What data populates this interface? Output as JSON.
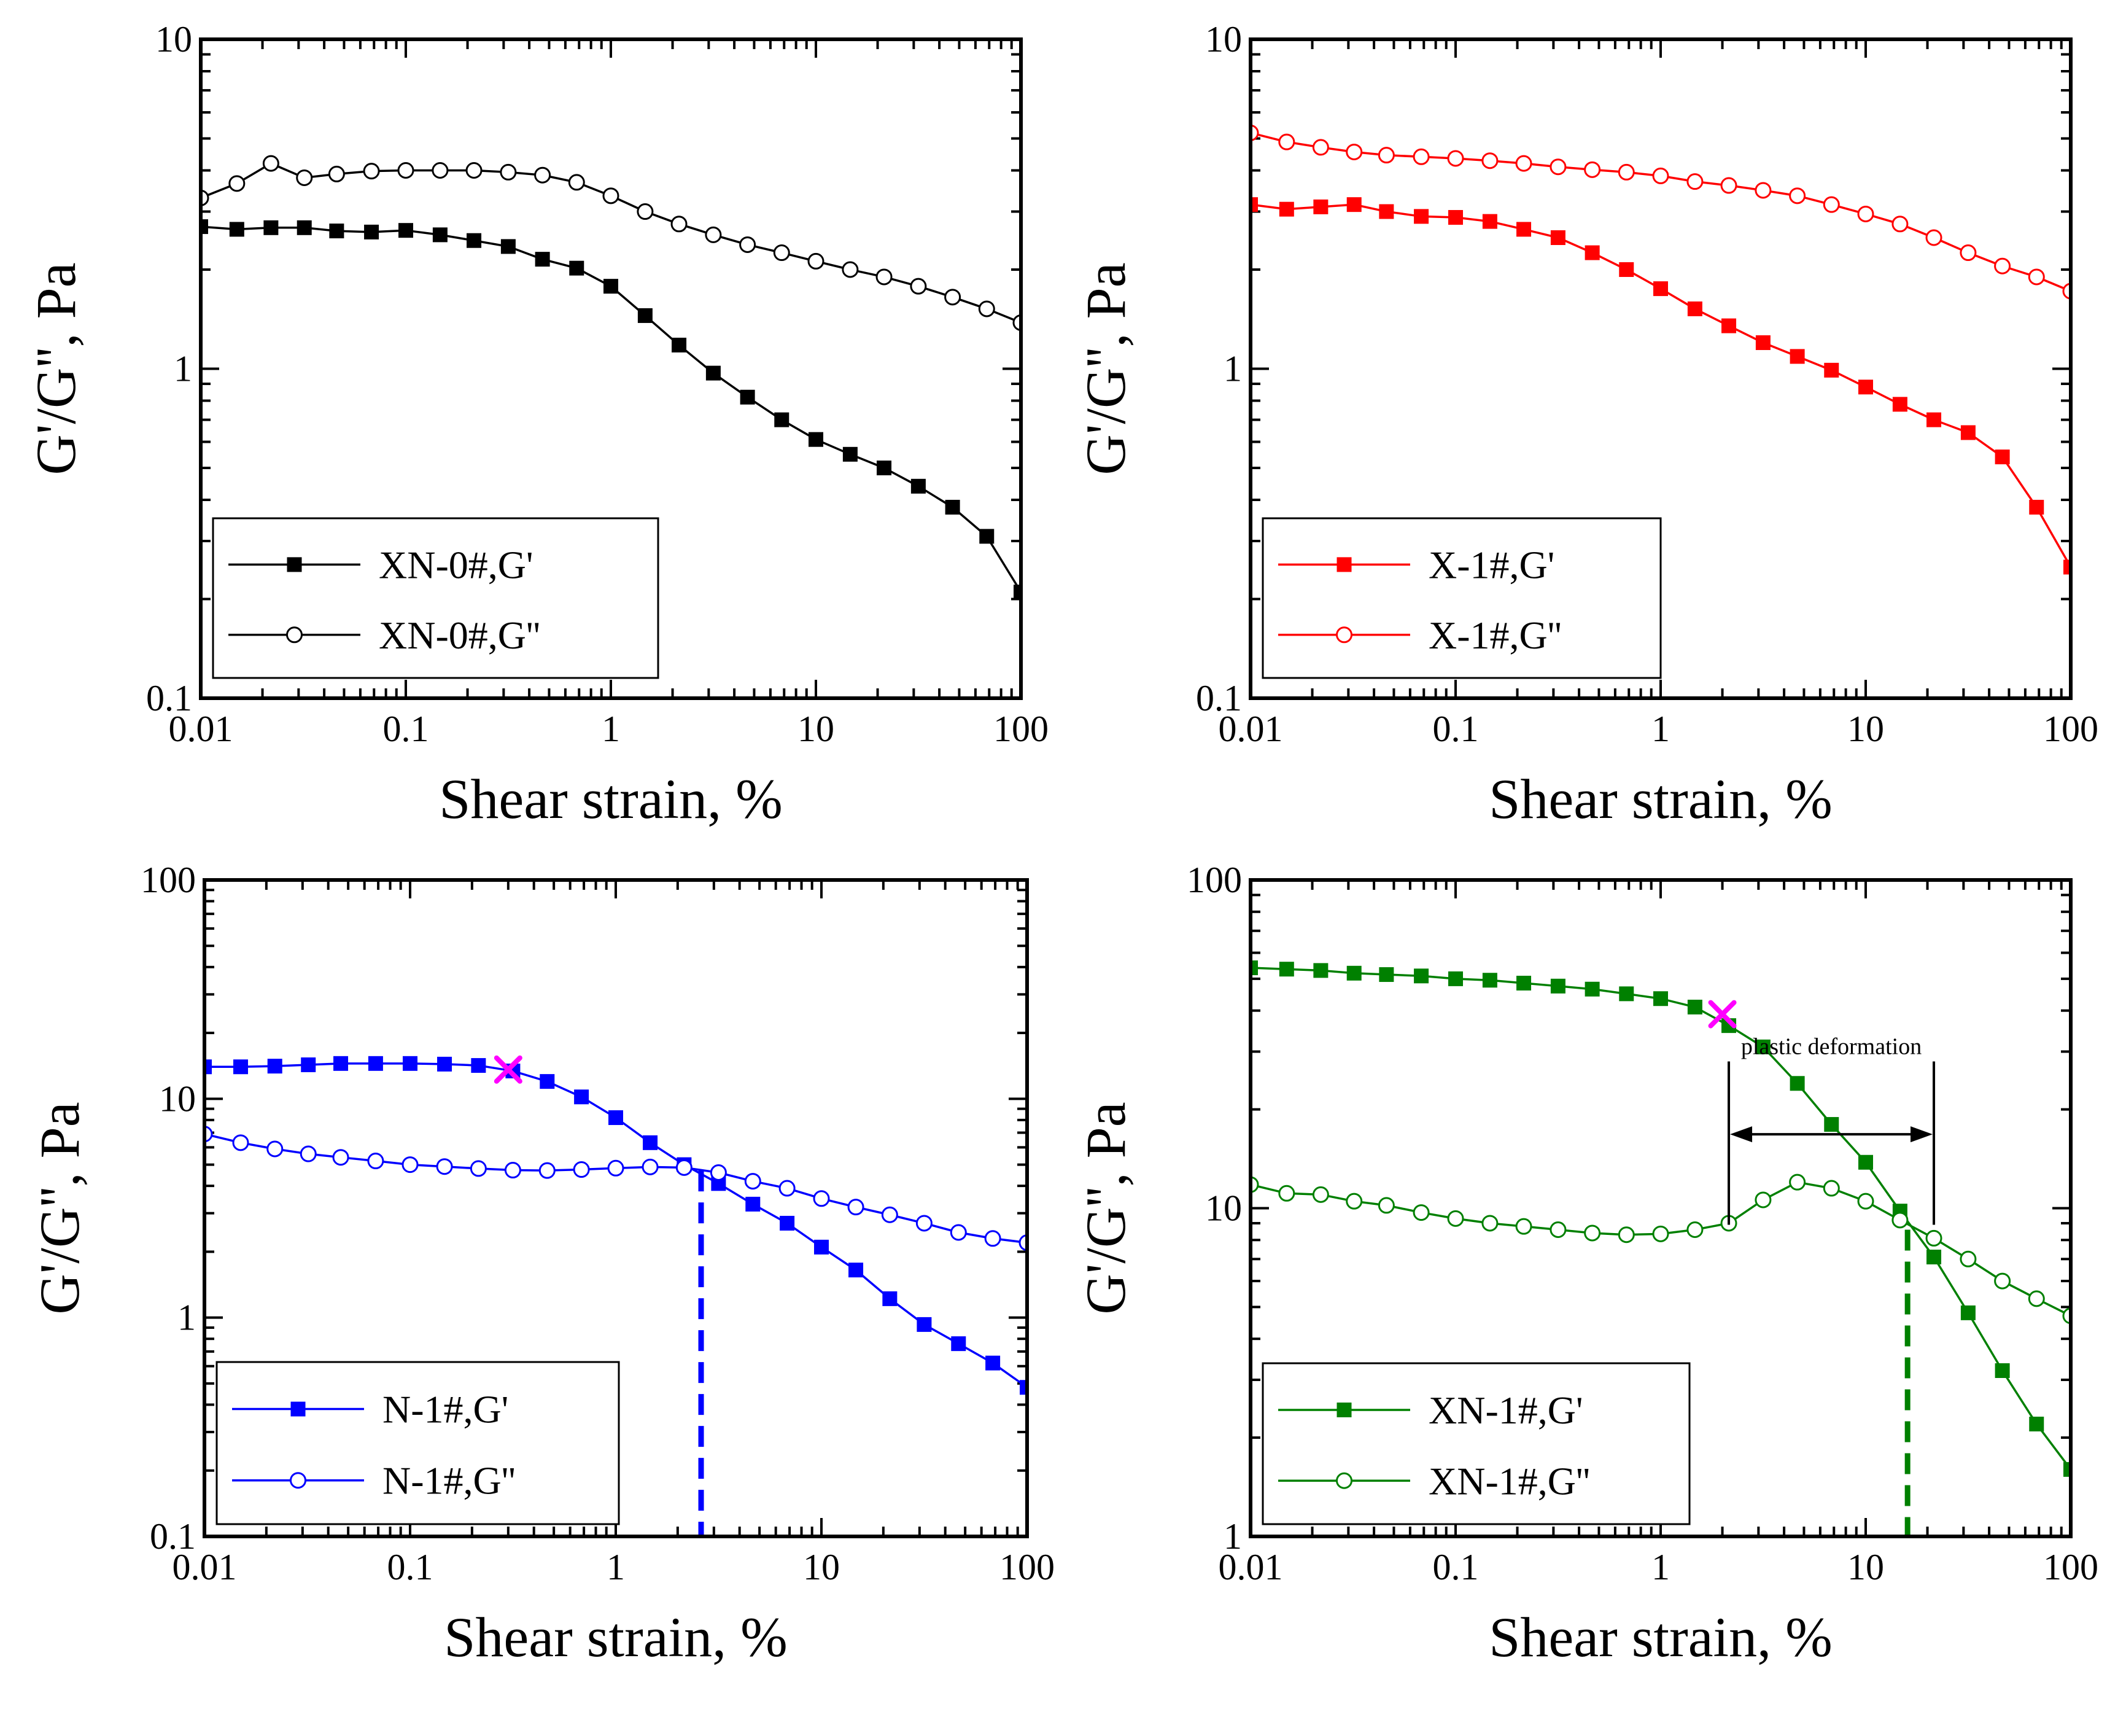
{
  "chart_data": [
    {
      "type": "line",
      "panel": "top-left",
      "xscale": "log",
      "yscale": "log",
      "xlim": [
        0.01,
        100
      ],
      "ylim": [
        0.1,
        10
      ],
      "xticks": [
        "0.01",
        "0.1",
        "1",
        "10",
        "100"
      ],
      "yticks": [
        "0.1",
        "1",
        "10"
      ],
      "xlabel": "Shear strain, %",
      "ylabel": "G'/G'', Pa",
      "legend_position": "bottom-left",
      "x": [
        0.01,
        0.015,
        0.022,
        0.032,
        0.046,
        0.068,
        0.1,
        0.147,
        0.215,
        0.316,
        0.464,
        0.681,
        1.0,
        1.47,
        2.15,
        3.16,
        4.64,
        6.81,
        10.0,
        14.7,
        21.5,
        31.6,
        46.4,
        68.1,
        100
      ],
      "series": [
        {
          "name": "XN-0#,G'",
          "color": "#000000",
          "marker": "square-filled",
          "values": [
            2.7,
            2.65,
            2.68,
            2.68,
            2.62,
            2.6,
            2.63,
            2.55,
            2.45,
            2.35,
            2.15,
            2.02,
            1.78,
            1.45,
            1.18,
            0.97,
            0.82,
            0.7,
            0.61,
            0.55,
            0.5,
            0.44,
            0.38,
            0.31,
            0.21
          ]
        },
        {
          "name": "XN-0#,G''",
          "color": "#000000",
          "marker": "circle-open",
          "values": [
            3.3,
            3.65,
            4.2,
            3.8,
            3.9,
            3.98,
            4.0,
            4.0,
            4.0,
            3.95,
            3.87,
            3.68,
            3.35,
            3.0,
            2.75,
            2.55,
            2.38,
            2.25,
            2.12,
            2.0,
            1.9,
            1.78,
            1.65,
            1.52,
            1.38
          ]
        }
      ]
    },
    {
      "type": "line",
      "panel": "top-right",
      "xscale": "log",
      "yscale": "log",
      "xlim": [
        0.01,
        100
      ],
      "ylim": [
        0.1,
        10
      ],
      "xticks": [
        "0.01",
        "0.1",
        "1",
        "10",
        "100"
      ],
      "yticks": [
        "0.1",
        "1",
        "10"
      ],
      "xlabel": "Shear strain, %",
      "ylabel": "G'/G'', Pa",
      "legend_position": "bottom-left",
      "x": [
        0.01,
        0.015,
        0.022,
        0.032,
        0.046,
        0.068,
        0.1,
        0.147,
        0.215,
        0.316,
        0.464,
        0.681,
        1.0,
        1.47,
        2.15,
        3.16,
        4.64,
        6.81,
        10.0,
        14.7,
        21.5,
        31.6,
        46.4,
        68.1,
        100
      ],
      "series": [
        {
          "name": "X-1#,G'",
          "color": "#ff0000",
          "marker": "square-filled",
          "values": [
            3.15,
            3.05,
            3.1,
            3.15,
            3.0,
            2.9,
            2.88,
            2.8,
            2.65,
            2.5,
            2.25,
            2.0,
            1.75,
            1.52,
            1.35,
            1.2,
            1.09,
            0.99,
            0.88,
            0.78,
            0.7,
            0.64,
            0.54,
            0.38,
            0.25
          ]
        },
        {
          "name": "X-1#,G''",
          "color": "#ff0000",
          "marker": "circle-open",
          "values": [
            5.2,
            4.88,
            4.7,
            4.55,
            4.45,
            4.4,
            4.35,
            4.28,
            4.2,
            4.1,
            4.02,
            3.95,
            3.85,
            3.7,
            3.6,
            3.48,
            3.35,
            3.15,
            2.95,
            2.75,
            2.5,
            2.25,
            2.05,
            1.9,
            1.72
          ]
        }
      ]
    },
    {
      "type": "line",
      "panel": "bottom-left",
      "xscale": "log",
      "yscale": "log",
      "xlim": [
        0.01,
        100
      ],
      "ylim": [
        0.1,
        100
      ],
      "xticks": [
        "0.01",
        "0.1",
        "1",
        "10",
        "100"
      ],
      "yticks": [
        "0.1",
        "1",
        "10",
        "100"
      ],
      "xlabel": "Shear strain, %",
      "ylabel": "G'/G'', Pa",
      "legend_position": "bottom-left",
      "x": [
        0.01,
        0.015,
        0.022,
        0.032,
        0.046,
        0.068,
        0.1,
        0.147,
        0.215,
        0.316,
        0.464,
        0.681,
        1.0,
        1.47,
        2.15,
        3.16,
        4.64,
        6.81,
        10.0,
        14.7,
        21.5,
        31.6,
        46.4,
        68.1,
        100
      ],
      "series": [
        {
          "name": "N-1#,G'",
          "color": "#0000ff",
          "marker": "square-filled",
          "values": [
            14.0,
            14.0,
            14.1,
            14.3,
            14.5,
            14.5,
            14.5,
            14.4,
            14.2,
            13.4,
            12.0,
            10.2,
            8.2,
            6.3,
            5.0,
            4.1,
            3.3,
            2.7,
            2.1,
            1.65,
            1.22,
            0.93,
            0.76,
            0.62,
            0.48
          ]
        },
        {
          "name": "N-1#,G''",
          "color": "#0000ff",
          "marker": "circle-open",
          "values": [
            6.9,
            6.3,
            5.9,
            5.6,
            5.4,
            5.2,
            5.0,
            4.9,
            4.8,
            4.72,
            4.7,
            4.75,
            4.82,
            4.88,
            4.85,
            4.6,
            4.2,
            3.9,
            3.5,
            3.2,
            2.95,
            2.7,
            2.45,
            2.3,
            2.2
          ]
        }
      ],
      "annotations": {
        "yield_marker": {
          "x": 0.3,
          "y": 13.6,
          "symbol": "×",
          "color": "#ff00ff"
        },
        "crossover_line": {
          "x": 2.6,
          "color": "#0000ff",
          "style": "dashed"
        }
      }
    },
    {
      "type": "line",
      "panel": "bottom-right",
      "xscale": "log",
      "yscale": "log",
      "xlim": [
        0.01,
        100
      ],
      "ylim": [
        1,
        100
      ],
      "xticks": [
        "0.01",
        "0.1",
        "1",
        "10",
        "100"
      ],
      "yticks": [
        "1",
        "10",
        "100"
      ],
      "xlabel": "Shear strain, %",
      "ylabel": "G'/G'', Pa",
      "legend_position": "bottom-left",
      "x": [
        0.01,
        0.015,
        0.022,
        0.032,
        0.046,
        0.068,
        0.1,
        0.147,
        0.215,
        0.316,
        0.464,
        0.681,
        1.0,
        1.47,
        2.15,
        3.16,
        4.64,
        6.81,
        10.0,
        14.7,
        21.5,
        31.6,
        46.4,
        68.1,
        100
      ],
      "series": [
        {
          "name": "XN-1#,G'",
          "color": "#008000",
          "marker": "square-filled",
          "values": [
            54,
            53.5,
            53,
            52,
            51.5,
            51,
            50,
            49.5,
            48.5,
            47.5,
            46.5,
            45,
            43.5,
            41,
            36,
            31,
            24,
            18,
            13.8,
            9.8,
            7.1,
            4.8,
            3.2,
            2.2,
            1.6
          ]
        },
        {
          "name": "XN-1#,G''",
          "color": "#008000",
          "marker": "circle-open",
          "values": [
            11.8,
            11.1,
            11.0,
            10.5,
            10.2,
            9.7,
            9.3,
            9.0,
            8.8,
            8.6,
            8.4,
            8.3,
            8.35,
            8.6,
            9.0,
            10.6,
            12.0,
            11.5,
            10.5,
            9.2,
            8.1,
            7.0,
            6.0,
            5.3,
            4.7
          ]
        }
      ],
      "annotations": {
        "yield_marker": {
          "x": 2.0,
          "y": 39,
          "symbol": "×",
          "color": "#ff00ff"
        },
        "crossover_line": {
          "x": 16,
          "color": "#008000",
          "style": "dashed"
        },
        "region": {
          "label": "plastic deformation",
          "x_start": 2.15,
          "x_end": 21.5
        }
      }
    }
  ]
}
